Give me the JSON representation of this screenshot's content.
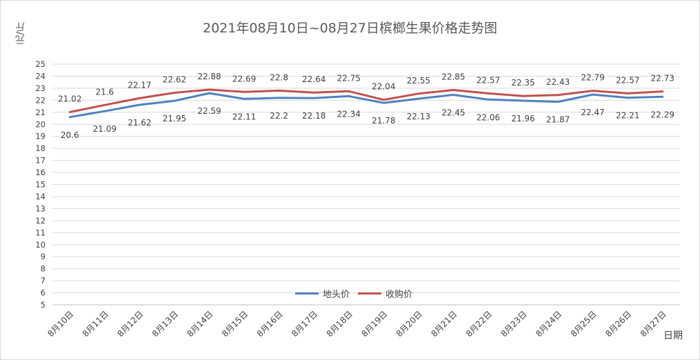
{
  "chart_data": {
    "type": "line",
    "title": "2021年08月10日~08月27日槟榔生果价格走势图",
    "xlabel": "日期",
    "ylabel": "元/斤",
    "ylim": [
      5,
      25
    ],
    "yticks": [
      5,
      6,
      7,
      8,
      9,
      10,
      11,
      12,
      13,
      14,
      15,
      16,
      17,
      18,
      19,
      20,
      21,
      22,
      23,
      24,
      25
    ],
    "grid": true,
    "legend_position": "bottom-center",
    "categories": [
      "8月10日",
      "8月11日",
      "8月12日",
      "8月13日",
      "8月14日",
      "8月15日",
      "8月16日",
      "8月17日",
      "8月18日",
      "8月19日",
      "8月20日",
      "8月21日",
      "8月22日",
      "8月23日",
      "8月24日",
      "8月25日",
      "8月26日",
      "8月27日"
    ],
    "series": [
      {
        "name": "地头价",
        "color": "#4f81bd",
        "label_position": "below",
        "values": [
          20.6,
          21.09,
          21.62,
          21.95,
          22.59,
          22.11,
          22.2,
          22.18,
          22.34,
          21.78,
          22.13,
          22.45,
          22.06,
          21.96,
          21.87,
          22.47,
          22.21,
          22.29
        ]
      },
      {
        "name": "收购价",
        "color": "#c0504d",
        "label_position": "above",
        "values": [
          21.02,
          21.6,
          22.17,
          22.62,
          22.88,
          22.69,
          22.8,
          22.64,
          22.75,
          22.04,
          22.55,
          22.85,
          22.57,
          22.35,
          22.43,
          22.79,
          22.57,
          22.73
        ]
      }
    ]
  }
}
